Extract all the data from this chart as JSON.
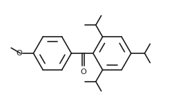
{
  "bg_color": "#ffffff",
  "line_color": "#1a1a1a",
  "line_width": 1.2,
  "figsize": [
    2.52,
    1.56
  ],
  "dpi": 100,
  "font_size": 7.0
}
